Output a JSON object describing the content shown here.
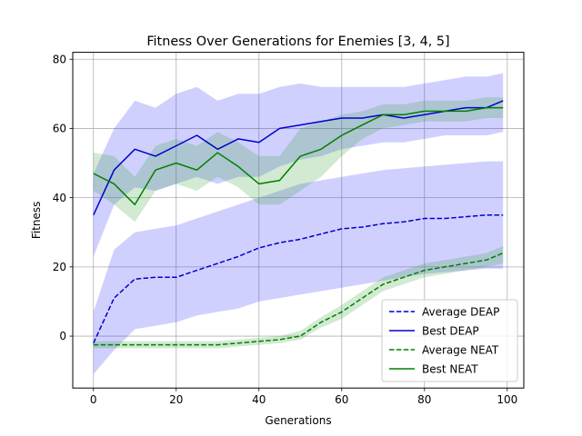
{
  "chart_data": {
    "type": "line",
    "title": "Fitness Over Generations for Enemies [3, 4, 5]",
    "xlabel": "Generations",
    "ylabel": "Fitness",
    "xlim": [
      -5,
      104
    ],
    "ylim": [
      -15,
      82
    ],
    "xticks": [
      0,
      20,
      40,
      60,
      80,
      100
    ],
    "yticks": [
      0,
      20,
      40,
      60,
      80
    ],
    "grid": true,
    "legend_position": "lower-right",
    "x": [
      0,
      5,
      10,
      15,
      20,
      25,
      30,
      35,
      40,
      45,
      50,
      55,
      60,
      65,
      70,
      75,
      80,
      85,
      90,
      95,
      99
    ],
    "series": [
      {
        "name": "Average DEAP",
        "style": "dashed",
        "color": "#0000cc",
        "values": [
          -2,
          11,
          16.5,
          17,
          17,
          19,
          21,
          23,
          25.5,
          27,
          28,
          29.5,
          31,
          31.5,
          32.5,
          33,
          34,
          34,
          34.5,
          35,
          35
        ],
        "band_lower": [
          -11,
          -4,
          2,
          3,
          4,
          6,
          7,
          8,
          10,
          11,
          12,
          13,
          14,
          15,
          16,
          17,
          18,
          18.5,
          19,
          19.5,
          19.5
        ],
        "band_upper": [
          7,
          25,
          30,
          31,
          32,
          34,
          36,
          38,
          40,
          42,
          44,
          45,
          46,
          47,
          48,
          48.5,
          49,
          49.5,
          50,
          50.5,
          50.5
        ]
      },
      {
        "name": "Best DEAP",
        "style": "solid",
        "color": "#0000cc",
        "values": [
          35,
          48,
          54,
          52,
          55,
          58,
          54,
          57,
          56,
          60,
          61,
          62,
          63,
          63,
          64,
          63,
          64,
          65,
          66,
          66,
          68
        ],
        "band_lower": [
          23,
          38,
          43,
          42,
          44,
          46,
          44,
          46,
          46,
          49,
          51,
          52,
          54,
          55,
          56,
          56,
          57,
          58,
          58,
          58,
          59
        ],
        "band_upper": [
          47,
          60,
          68,
          66,
          70,
          72,
          68,
          70,
          70,
          72,
          73,
          72,
          72,
          72,
          72,
          72,
          73,
          74,
          75,
          75,
          76
        ]
      },
      {
        "name": "Average NEAT",
        "style": "dashed",
        "color": "#008000",
        "values": [
          -2.5,
          -2.5,
          -2.5,
          -2.5,
          -2.5,
          -2.5,
          -2.5,
          -2,
          -1.5,
          -1,
          0,
          4,
          7,
          11,
          15,
          17,
          19,
          20,
          21,
          22,
          24
        ],
        "band_lower": [
          -3.5,
          -3.5,
          -3.5,
          -3.5,
          -3.5,
          -3.5,
          -3.5,
          -3,
          -2.5,
          -2,
          -1,
          2.5,
          5,
          9,
          13,
          15,
          17,
          18,
          19,
          20,
          21
        ],
        "band_upper": [
          -1.5,
          -1.5,
          -1.5,
          -1.5,
          -1.5,
          -1.5,
          -1.5,
          -1,
          -0.5,
          0,
          1.5,
          5.5,
          9,
          13,
          17,
          19,
          21,
          22,
          23,
          24,
          26
        ]
      },
      {
        "name": "Best NEAT",
        "style": "solid",
        "color": "#008000",
        "values": [
          47,
          44,
          38,
          48,
          50,
          48,
          53,
          49,
          44,
          45,
          52,
          54,
          58,
          61,
          64,
          64,
          65,
          65,
          65,
          66,
          66
        ],
        "band_lower": [
          42,
          38,
          33,
          42,
          44,
          42,
          46,
          43,
          38,
          38,
          42,
          46,
          52,
          57,
          60,
          61,
          62,
          62,
          62,
          63,
          63
        ],
        "band_upper": [
          53,
          52,
          46,
          55,
          57,
          55,
          59,
          56,
          52,
          52,
          60,
          62,
          64,
          65,
          67,
          67,
          68,
          68,
          68,
          69,
          69
        ]
      }
    ]
  }
}
